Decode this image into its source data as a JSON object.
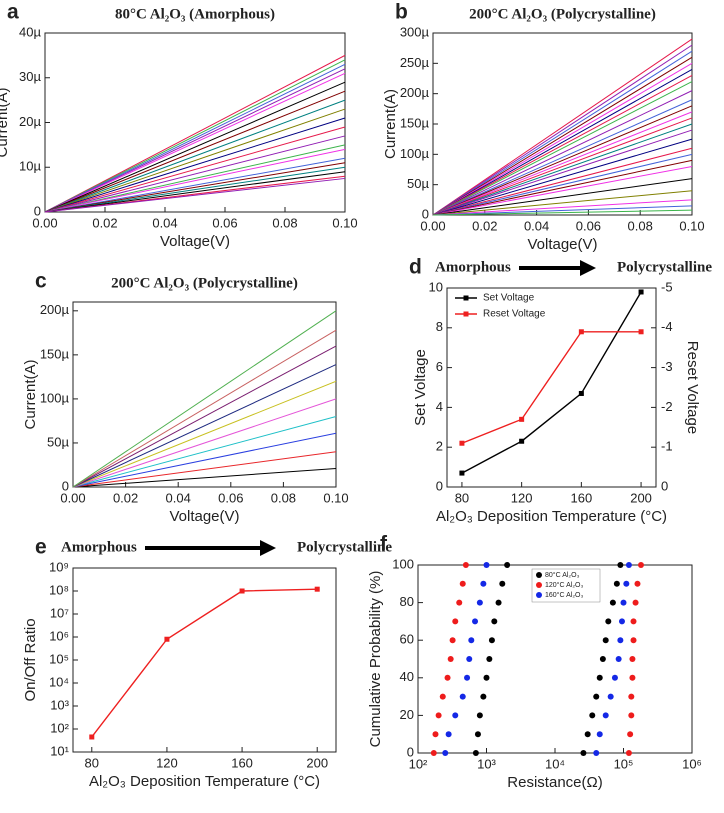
{
  "chart_data": [
    {
      "type": "line",
      "panel_label": "a",
      "title": "80°C Al₂O₃ (Amorphous)",
      "xlabel": "Voltage(V)",
      "ylabel": "Current(A)",
      "x": [
        0,
        0.1
      ],
      "xlim": [
        0,
        0.1
      ],
      "ylim": [
        0,
        4e-05
      ],
      "xticks": [
        {
          "value": 0,
          "label": "0.00"
        },
        {
          "value": 0.02,
          "label": "0.02"
        },
        {
          "value": 0.04,
          "label": "0.04"
        },
        {
          "value": 0.06,
          "label": "0.06"
        },
        {
          "value": 0.08,
          "label": "0.08"
        },
        {
          "value": 0.1,
          "label": "0.10"
        }
      ],
      "yticks": [
        0,
        {
          "value": 1e-05,
          "label": "10µ"
        },
        {
          "value": 2e-05,
          "label": "20µ"
        },
        {
          "value": 3e-05,
          "label": "30µ"
        },
        {
          "value": 4e-05,
          "label": "40µ"
        }
      ],
      "series": [
        {
          "color": "#e6194b",
          "values": [
            0,
            3.5e-05
          ]
        },
        {
          "color": "#3cb44b",
          "values": [
            0,
            3.4e-05
          ]
        },
        {
          "color": "#4363d8",
          "values": [
            0,
            3.3e-05
          ]
        },
        {
          "color": "#911eb4",
          "values": [
            0,
            3.2e-05
          ]
        },
        {
          "color": "#f032e6",
          "values": [
            0,
            3.1e-05
          ]
        },
        {
          "color": "#000000",
          "values": [
            0,
            2.9e-05
          ]
        },
        {
          "color": "#800000",
          "values": [
            0,
            2.7e-05
          ]
        },
        {
          "color": "#008080",
          "values": [
            0,
            2.5e-05
          ]
        },
        {
          "color": "#808000",
          "values": [
            0,
            2.3e-05
          ]
        },
        {
          "color": "#000080",
          "values": [
            0,
            2.1e-05
          ]
        },
        {
          "color": "#e6194b",
          "values": [
            0,
            1.9e-05
          ]
        },
        {
          "color": "#911eb4",
          "values": [
            0,
            1.7e-05
          ]
        },
        {
          "color": "#3cb44b",
          "values": [
            0,
            1.5e-05
          ]
        },
        {
          "color": "#f032e6",
          "values": [
            0,
            1.4e-05
          ]
        },
        {
          "color": "#4363d8",
          "values": [
            0,
            1.2e-05
          ]
        },
        {
          "color": "#800000",
          "values": [
            0,
            1.1e-05
          ]
        },
        {
          "color": "#008080",
          "values": [
            0,
            1e-05
          ]
        },
        {
          "color": "#000000",
          "values": [
            0,
            9e-06
          ]
        },
        {
          "color": "#e6194b",
          "values": [
            0,
            8e-06
          ]
        },
        {
          "color": "#911eb4",
          "values": [
            0,
            7.5e-06
          ]
        }
      ]
    },
    {
      "type": "line",
      "panel_label": "b",
      "title": "200°C Al₂O₃ (Polycrystalline)",
      "xlabel": "Voltage(V)",
      "ylabel": "Current(A)",
      "x": [
        0,
        0.1
      ],
      "xlim": [
        0,
        0.1
      ],
      "ylim": [
        0,
        0.0003
      ],
      "xticks": [
        {
          "value": 0,
          "label": "0.00"
        },
        {
          "value": 0.02,
          "label": "0.02"
        },
        {
          "value": 0.04,
          "label": "0.04"
        },
        {
          "value": 0.06,
          "label": "0.06"
        },
        {
          "value": 0.08,
          "label": "0.08"
        },
        {
          "value": 0.1,
          "label": "0.10"
        }
      ],
      "yticks": [
        0,
        {
          "value": 5e-05,
          "label": "50µ"
        },
        {
          "value": 0.0001,
          "label": "100µ"
        },
        {
          "value": 0.00015,
          "label": "150µ"
        },
        {
          "value": 0.0002,
          "label": "200µ"
        },
        {
          "value": 0.00025,
          "label": "250µ"
        },
        {
          "value": 0.0003,
          "label": "300µ"
        }
      ],
      "series": [
        {
          "color": "#e6194b",
          "values": [
            0,
            0.00029
          ]
        },
        {
          "color": "#911eb4",
          "values": [
            0,
            0.00028
          ]
        },
        {
          "color": "#4363d8",
          "values": [
            0,
            0.00027
          ]
        },
        {
          "color": "#800000",
          "values": [
            0,
            0.00026
          ]
        },
        {
          "color": "#f032e6",
          "values": [
            0,
            0.00025
          ]
        },
        {
          "color": "#000080",
          "values": [
            0,
            0.00024
          ]
        },
        {
          "color": "#e6194b",
          "values": [
            0,
            0.00023
          ]
        },
        {
          "color": "#3cb44b",
          "values": [
            0,
            0.00022
          ]
        },
        {
          "color": "#911eb4",
          "values": [
            0,
            0.000205
          ]
        },
        {
          "color": "#4363d8",
          "values": [
            0,
            0.00019
          ]
        },
        {
          "color": "#800000",
          "values": [
            0,
            0.00018
          ]
        },
        {
          "color": "#f032e6",
          "values": [
            0,
            0.00017
          ]
        },
        {
          "color": "#e6194b",
          "values": [
            0,
            0.00016
          ]
        },
        {
          "color": "#008080",
          "values": [
            0,
            0.00015
          ]
        },
        {
          "color": "#911eb4",
          "values": [
            0,
            0.00014
          ]
        },
        {
          "color": "#000080",
          "values": [
            0,
            0.000125
          ]
        },
        {
          "color": "#e6194b",
          "values": [
            0,
            0.00011
          ]
        },
        {
          "color": "#4363d8",
          "values": [
            0,
            0.0001
          ]
        },
        {
          "color": "#800000",
          "values": [
            0,
            9e-05
          ]
        },
        {
          "color": "#f032e6",
          "values": [
            0,
            8e-05
          ]
        },
        {
          "color": "#000000",
          "values": [
            0,
            6e-05
          ]
        },
        {
          "color": "#808000",
          "values": [
            0,
            4e-05
          ]
        },
        {
          "color": "#f032e6",
          "values": [
            0,
            2.5e-05
          ]
        },
        {
          "color": "#4363d8",
          "values": [
            0,
            1.5e-05
          ]
        },
        {
          "color": "#3cb44b",
          "values": [
            0,
            8e-06
          ]
        }
      ]
    },
    {
      "type": "line",
      "panel_label": "c",
      "title": "200°C Al₂O₃ (Polycrystalline)",
      "xlabel": "Voltage(V)",
      "ylabel": "Current(A)",
      "x": [
        0,
        0.1
      ],
      "xlim": [
        0,
        0.1
      ],
      "ylim": [
        0,
        0.00021
      ],
      "xticks": [
        {
          "value": 0,
          "label": "0.00"
        },
        {
          "value": 0.02,
          "label": "0.02"
        },
        {
          "value": 0.04,
          "label": "0.04"
        },
        {
          "value": 0.06,
          "label": "0.06"
        },
        {
          "value": 0.08,
          "label": "0.08"
        },
        {
          "value": 0.1,
          "label": "0.10"
        }
      ],
      "yticks": [
        0,
        {
          "value": 5e-05,
          "label": "50µ"
        },
        {
          "value": 0.0001,
          "label": "100µ"
        },
        {
          "value": 0.00015,
          "label": "150µ"
        },
        {
          "value": 0.0002,
          "label": "200µ"
        }
      ],
      "series": [
        {
          "color": "#000000",
          "values": [
            0,
            2.1e-05
          ]
        },
        {
          "color": "#e8262a",
          "values": [
            0,
            4e-05
          ]
        },
        {
          "color": "#2a3fe0",
          "values": [
            0,
            6.1e-05
          ]
        },
        {
          "color": "#1fc0c8",
          "values": [
            0,
            8e-05
          ]
        },
        {
          "color": "#e455d8",
          "values": [
            0,
            0.0001
          ]
        },
        {
          "color": "#c8c020",
          "values": [
            0,
            0.00012
          ]
        },
        {
          "color": "#1e2a80",
          "values": [
            0,
            0.000139
          ]
        },
        {
          "color": "#7a1e70",
          "values": [
            0,
            0.00016
          ]
        },
        {
          "color": "#c86060",
          "values": [
            0,
            0.000178
          ]
        },
        {
          "color": "#50b050",
          "values": [
            0,
            0.0002
          ]
        }
      ]
    },
    {
      "type": "line",
      "panel_label": "d",
      "annotations": [
        "Amorphous",
        "Polycrystalline"
      ],
      "xlabel": "Al₂O₃ Deposition Temperature (°C)",
      "ylabel": "Set Voltage",
      "y2label": "Reset Voltage",
      "legend": "upper left",
      "x": [
        80,
        120,
        160,
        200
      ],
      "xlim": [
        70,
        210
      ],
      "ylim": [
        0,
        10
      ],
      "y2lim": [
        0,
        -5
      ],
      "xticks": [
        80,
        120,
        160,
        200
      ],
      "yticks": [
        0,
        2,
        4,
        6,
        8,
        10
      ],
      "y2ticks": [
        0,
        -1,
        -2,
        -3,
        -4,
        -5
      ],
      "series": [
        {
          "name": "Set Voltage",
          "color": "#000000",
          "values": [
            0.7,
            2.3,
            4.7,
            9.8
          ]
        },
        {
          "name": "Reset Voltage",
          "color": "#ee2020",
          "axis": "y2",
          "values": [
            -1.1,
            -1.7,
            -3.9,
            -3.9
          ]
        }
      ]
    },
    {
      "type": "line",
      "panel_label": "e",
      "annotations": [
        "Amorphous",
        "Polycrystalline"
      ],
      "xlabel": "Al₂O₃ Deposition Temperature (°C)",
      "ylabel": "On/Off Ratio",
      "ylog": true,
      "x": [
        80,
        120,
        160,
        200
      ],
      "xlim": [
        70,
        210
      ],
      "ylim": [
        10,
        1000000000
      ],
      "xticks": [
        80,
        120,
        160,
        200
      ],
      "yticks": [
        {
          "value": 10,
          "label": "10¹"
        },
        {
          "value": 100,
          "label": "10²"
        },
        {
          "value": 1000,
          "label": "10³"
        },
        {
          "value": 10000,
          "label": "10⁴"
        },
        {
          "value": 100000,
          "label": "10⁵"
        },
        {
          "value": 1000000,
          "label": "10⁶"
        },
        {
          "value": 10000000,
          "label": "10⁷"
        },
        {
          "value": 100000000,
          "label": "10⁸"
        },
        {
          "value": 1000000000,
          "label": "10⁹"
        }
      ],
      "series": [
        {
          "color": "#ee2020",
          "values": [
            45,
            800000,
            100000000,
            120000000
          ]
        }
      ]
    },
    {
      "type": "scatter",
      "panel_label": "f",
      "xlabel": "Resistance(Ω)",
      "ylabel": "Cumulative Probability (%)",
      "xlog": true,
      "legend": "upper center",
      "xlim": [
        100,
        1000000
      ],
      "ylim": [
        0,
        100
      ],
      "xticks": [
        {
          "value": 100,
          "label": "10²"
        },
        {
          "value": 1000,
          "label": "10³"
        },
        {
          "value": 10000,
          "label": "10⁴"
        },
        {
          "value": 100000,
          "label": "10⁵"
        },
        {
          "value": 1000000,
          "label": "10⁶"
        }
      ],
      "yticks": [
        0,
        20,
        40,
        60,
        80,
        100
      ],
      "series": [
        {
          "name": "80°C Al₂O₃",
          "color": "#000000",
          "x": [
            700,
            750,
            800,
            900,
            1000,
            1100,
            1200,
            1300,
            1500,
            1700,
            2000,
            26000,
            30000,
            35000,
            40000,
            45000,
            50000,
            55000,
            60000,
            70000,
            80000,
            90000
          ],
          "values": [
            0,
            10,
            20,
            30,
            40,
            50,
            60,
            70,
            80,
            90,
            100,
            0,
            10,
            20,
            30,
            40,
            50,
            60,
            70,
            80,
            90,
            100
          ]
        },
        {
          "name": "120°C Al₂O₃",
          "color": "#ee1c1c",
          "x": [
            170,
            180,
            200,
            230,
            270,
            300,
            320,
            350,
            400,
            450,
            500,
            120000,
            125000,
            130000,
            130000,
            135000,
            135000,
            140000,
            140000,
            150000,
            160000,
            180000
          ],
          "values": [
            0,
            10,
            20,
            30,
            40,
            50,
            60,
            70,
            80,
            90,
            100,
            0,
            10,
            20,
            30,
            40,
            50,
            60,
            70,
            80,
            90,
            100
          ]
        },
        {
          "name": "160°C Al₂O₃",
          "color": "#1428e6",
          "x": [
            250,
            280,
            350,
            450,
            520,
            560,
            600,
            680,
            800,
            900,
            1000,
            40000,
            45000,
            55000,
            65000,
            75000,
            85000,
            90000,
            95000,
            100000,
            110000,
            120000
          ],
          "values": [
            0,
            10,
            20,
            30,
            40,
            50,
            60,
            70,
            80,
            90,
            100,
            0,
            10,
            20,
            30,
            40,
            50,
            60,
            70,
            80,
            90,
            100
          ]
        }
      ]
    }
  ]
}
